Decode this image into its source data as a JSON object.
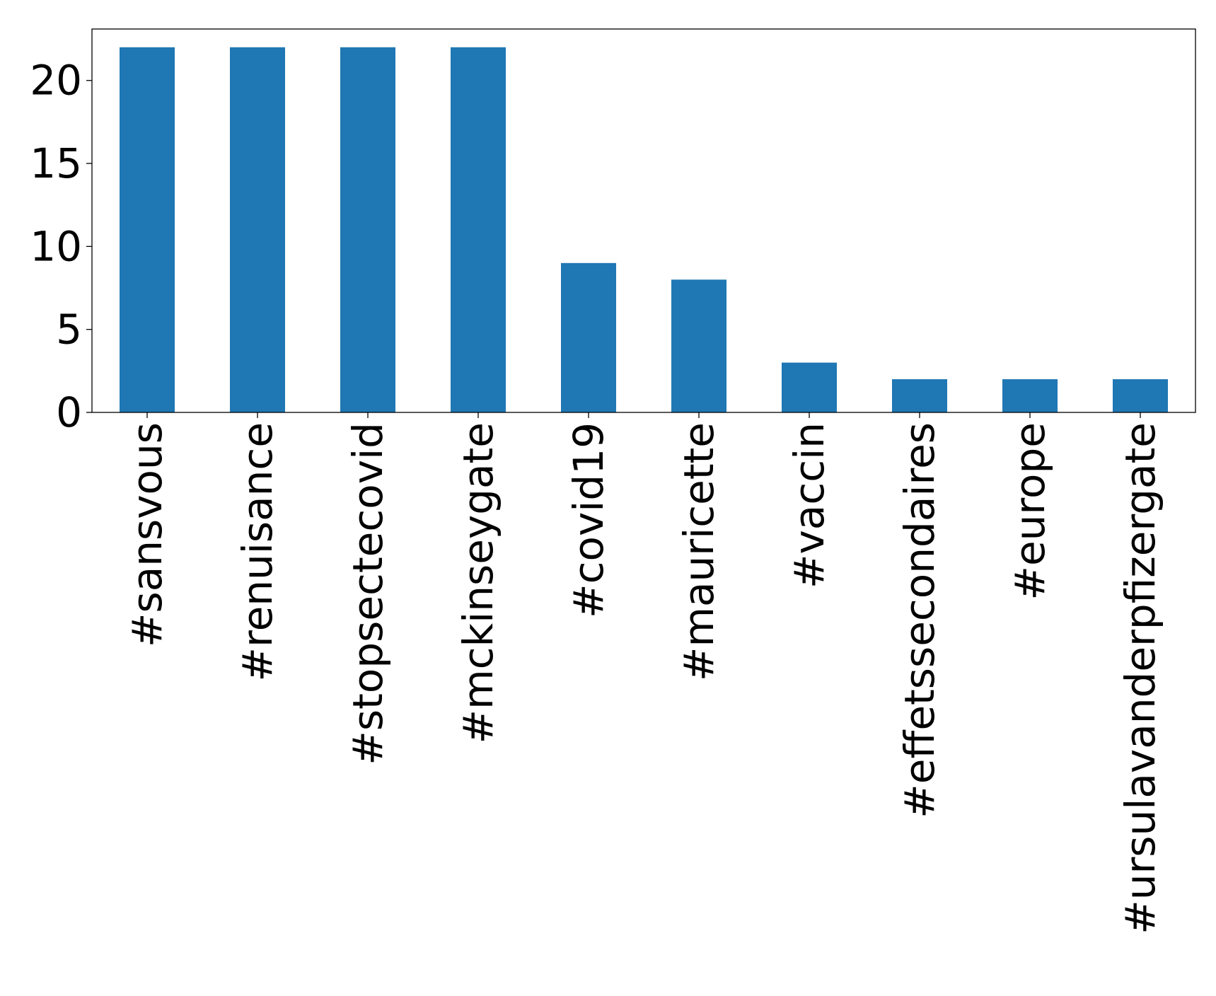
{
  "chart_data": {
    "type": "bar",
    "title": "",
    "xlabel": "",
    "ylabel": "",
    "categories": [
      "#sansvous",
      "#renuisance",
      "#stopsectecovid",
      "#mckinseygate",
      "#covid19",
      "#mauricette",
      "#vaccin",
      "#effetssecondaires",
      "#europe",
      "#ursulavanderpfizergate"
    ],
    "values": [
      22,
      22,
      22,
      22,
      9,
      8,
      3,
      2,
      2,
      2
    ],
    "ylim": [
      0,
      23.1
    ],
    "yticks": [
      0,
      5,
      10,
      15,
      20
    ],
    "ytick_labels": [
      "0",
      "5",
      "10",
      "15",
      "20"
    ],
    "bar_color": "#1f77b4",
    "grid": false,
    "legend": "none"
  }
}
